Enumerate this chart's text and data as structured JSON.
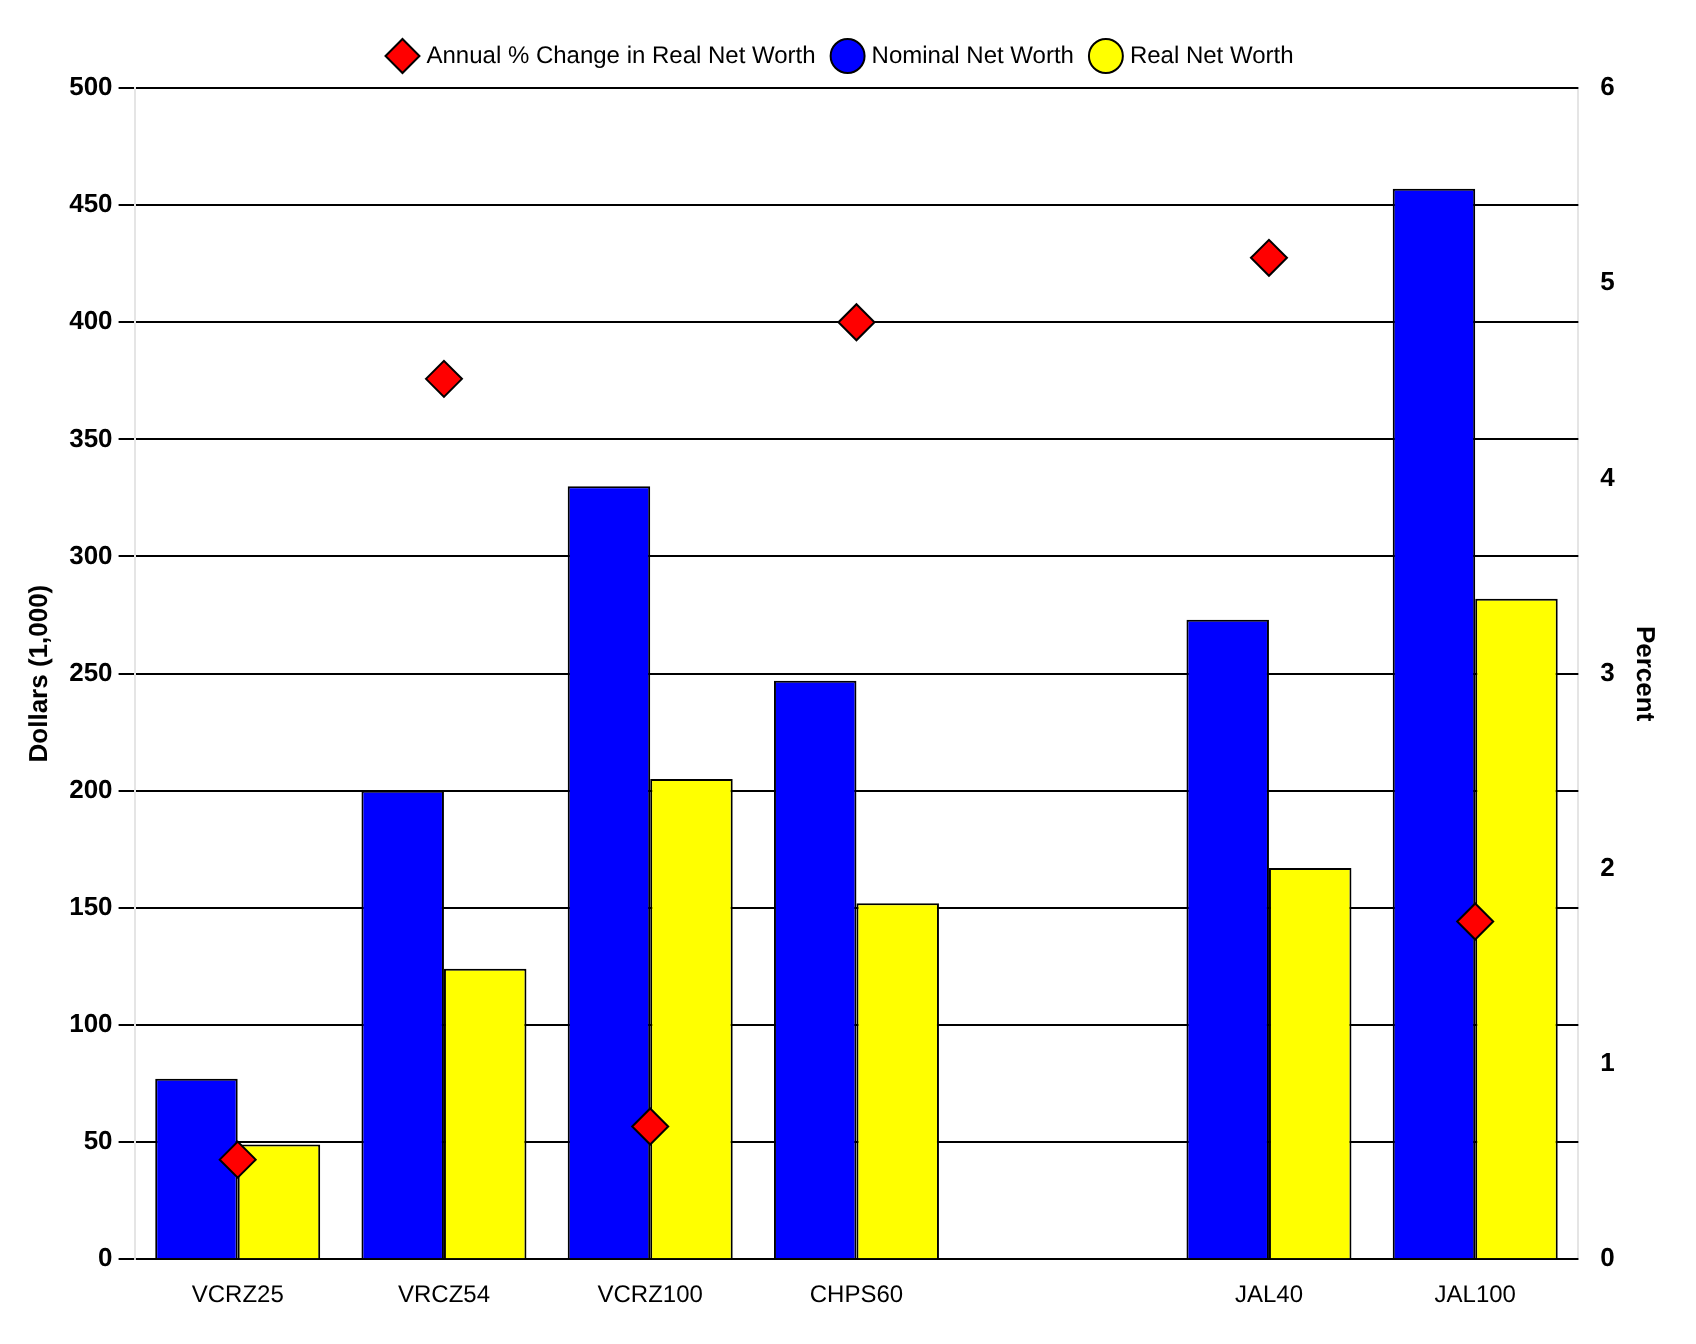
{
  "chart_data": {
    "type": "bar",
    "ylabel": "Dollars (1,000)",
    "y2label": "Percent",
    "categories": [
      "VCRZ25",
      "VRCZ54",
      "VCRZ100",
      "CHPS60",
      null,
      "JAL40",
      "JAL100"
    ],
    "series": [
      {
        "name": "Nominal Net Worth",
        "color": "#0000ff",
        "values": [
          77,
          200,
          330,
          247,
          null,
          273,
          457
        ]
      },
      {
        "name": "Real Net Worth",
        "color": "#ffff00",
        "values": [
          49,
          124,
          205,
          152,
          null,
          167,
          282
        ]
      },
      {
        "name": "Annual % Change in Real Net Worth",
        "type": "scatter",
        "axis": "y2",
        "marker": "diamond",
        "color": "#ff0000",
        "values": [
          0.51,
          4.51,
          0.68,
          4.8,
          null,
          5.13,
          1.73
        ]
      }
    ],
    "ylim": [
      0,
      500
    ],
    "yticks": [
      0,
      50,
      100,
      150,
      200,
      250,
      300,
      350,
      400,
      450,
      500
    ],
    "y2lim": [
      0,
      6
    ],
    "y2ticks": [
      0,
      1,
      2,
      3,
      4,
      5,
      6
    ],
    "grid": "y",
    "legend": "top"
  }
}
